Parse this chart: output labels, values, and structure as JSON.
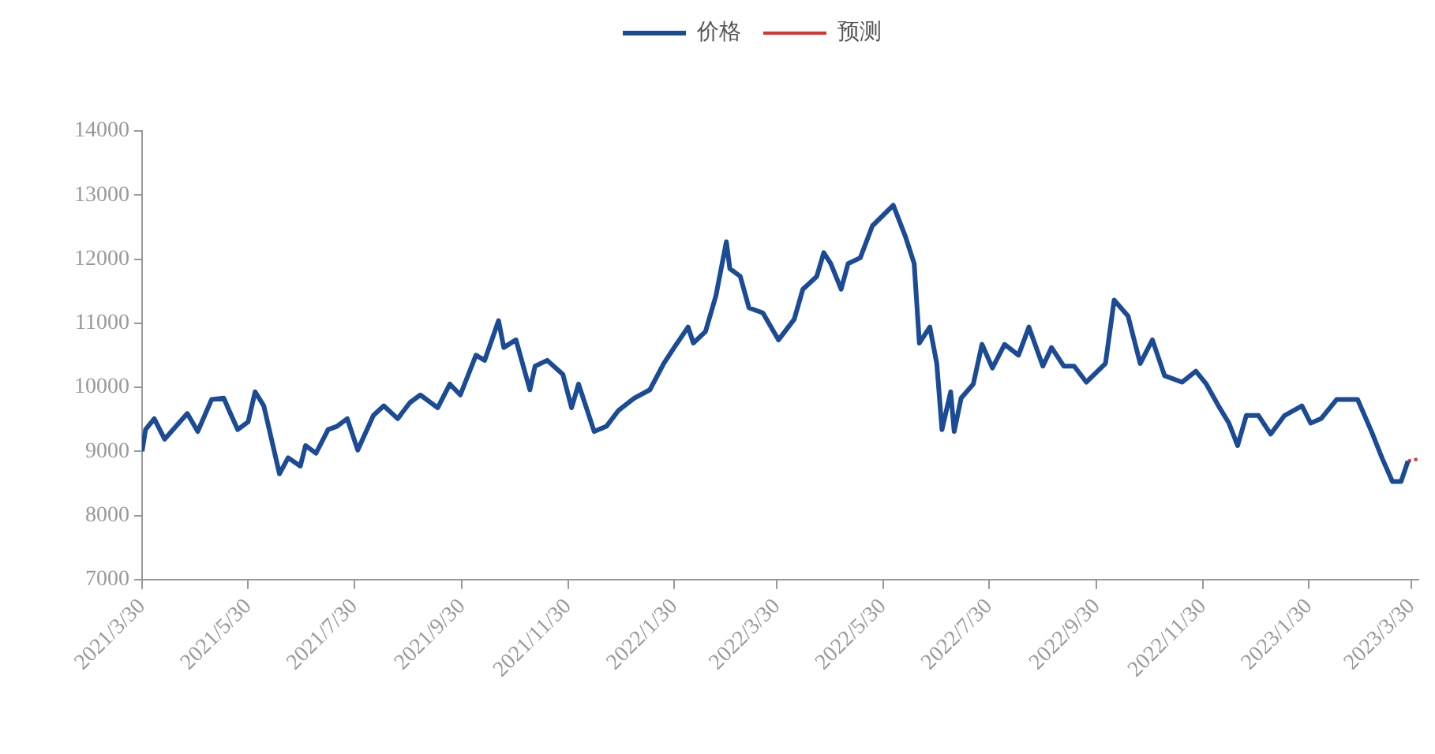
{
  "chart_data": {
    "type": "line",
    "legend": "top",
    "grid": false,
    "marker": "none",
    "xlim": [
      "2021-03-30",
      "2023-04-03"
    ],
    "xticks": [
      {
        "value": "2021-03-30",
        "label": "2021/3/30"
      },
      {
        "value": "2021-05-30",
        "label": "2021/5/30"
      },
      {
        "value": "2021-07-30",
        "label": "2021/7/30"
      },
      {
        "value": "2021-09-30",
        "label": "2021/9/30"
      },
      {
        "value": "2021-11-30",
        "label": "2021/11/30"
      },
      {
        "value": "2022-01-30",
        "label": "2022/1/30"
      },
      {
        "value": "2022-03-30",
        "label": "2022/3/30"
      },
      {
        "value": "2022-05-30",
        "label": "2022/5/30"
      },
      {
        "value": "2022-07-30",
        "label": "2022/7/30"
      },
      {
        "value": "2022-09-30",
        "label": "2022/9/30"
      },
      {
        "value": "2022-11-30",
        "label": "2022/11/30"
      },
      {
        "value": "2023-01-30",
        "label": "2023/1/30"
      },
      {
        "value": "2023-03-30",
        "label": "2023/3/30"
      }
    ],
    "ylim": [
      7000,
      14000
    ],
    "yticks": [
      7000,
      8000,
      9000,
      10000,
      11000,
      12000,
      13000,
      14000
    ],
    "series": [
      {
        "name": "价格",
        "color": "#1c4b96",
        "line_style": "solid",
        "x": [
          "2021-03-30",
          "2021-04-01",
          "2021-04-06",
          "2021-04-12",
          "2021-04-25",
          "2021-05-01",
          "2021-05-09",
          "2021-05-16",
          "2021-05-19",
          "2021-05-24",
          "2021-05-30",
          "2021-06-03",
          "2021-06-08",
          "2021-06-17",
          "2021-06-22",
          "2021-06-29",
          "2021-07-02",
          "2021-07-08",
          "2021-07-15",
          "2021-07-20",
          "2021-07-26",
          "2021-08-01",
          "2021-08-10",
          "2021-08-16",
          "2021-08-24",
          "2021-08-31",
          "2021-09-06",
          "2021-09-16",
          "2021-09-23",
          "2021-09-29",
          "2021-10-08",
          "2021-10-13",
          "2021-10-21",
          "2021-10-24",
          "2021-10-31",
          "2021-11-08",
          "2021-11-11",
          "2021-11-18",
          "2021-11-27",
          "2021-12-02",
          "2021-12-06",
          "2021-12-15",
          "2021-12-22",
          "2021-12-29",
          "2022-01-07",
          "2022-01-16",
          "2022-01-24",
          "2022-01-30",
          "2022-02-07",
          "2022-02-10",
          "2022-02-17",
          "2022-02-23",
          "2022-03-01",
          "2022-03-03",
          "2022-03-09",
          "2022-03-14",
          "2022-03-22",
          "2022-03-31",
          "2022-04-09",
          "2022-04-14",
          "2022-04-22",
          "2022-04-26",
          "2022-04-30",
          "2022-05-06",
          "2022-05-10",
          "2022-05-17",
          "2022-05-24",
          "2022-06-05",
          "2022-06-12",
          "2022-06-17",
          "2022-06-20",
          "2022-06-26",
          "2022-06-30",
          "2022-07-03",
          "2022-07-08",
          "2022-07-10",
          "2022-07-14",
          "2022-07-21",
          "2022-07-26",
          "2022-08-01",
          "2022-08-08",
          "2022-08-16",
          "2022-08-22",
          "2022-08-30",
          "2022-09-04",
          "2022-09-11",
          "2022-09-17",
          "2022-09-24",
          "2022-10-05",
          "2022-10-10",
          "2022-10-18",
          "2022-10-25",
          "2022-11-01",
          "2022-11-08",
          "2022-11-18",
          "2022-11-26",
          "2022-12-02",
          "2022-12-09",
          "2022-12-15",
          "2022-12-20",
          "2022-12-25",
          "2023-01-01",
          "2023-01-08",
          "2023-01-16",
          "2023-01-26",
          "2023-01-31",
          "2023-02-06",
          "2023-02-15",
          "2023-02-27",
          "2023-03-07",
          "2023-03-13",
          "2023-03-19",
          "2023-03-24",
          "2023-03-28"
        ],
        "values": [
          9000,
          9340,
          9510,
          9190,
          9590,
          9310,
          9810,
          9830,
          9640,
          9340,
          9460,
          9930,
          9710,
          8650,
          8900,
          8770,
          9090,
          8970,
          9340,
          9390,
          9510,
          9020,
          9560,
          9710,
          9510,
          9760,
          9880,
          9680,
          10050,
          9880,
          10500,
          10420,
          11040,
          10620,
          10740,
          9960,
          10330,
          10420,
          10200,
          9680,
          10050,
          9310,
          9390,
          9640,
          9830,
          9960,
          10370,
          10620,
          10940,
          10690,
          10870,
          11430,
          12270,
          11850,
          11730,
          11240,
          11160,
          10740,
          11060,
          11530,
          11730,
          12100,
          11930,
          11530,
          11930,
          12020,
          12520,
          12840,
          12350,
          11930,
          10690,
          10940,
          10370,
          9340,
          9930,
          9310,
          9830,
          10050,
          10670,
          10300,
          10670,
          10500,
          10940,
          10330,
          10620,
          10330,
          10330,
          10080,
          10370,
          11360,
          11110,
          10370,
          10740,
          10180,
          10080,
          10250,
          10050,
          9710,
          9440,
          9090,
          9560,
          9560,
          9270,
          9560,
          9710,
          9440,
          9510,
          9810,
          9810,
          9310,
          8900,
          8530,
          8530,
          8850
        ]
      },
      {
        "name": "预测",
        "color": "#e03030",
        "line_style": "dotted",
        "x": [
          "2023-03-28",
          "2023-04-03"
        ],
        "values": [
          8850,
          8880
        ]
      }
    ]
  }
}
